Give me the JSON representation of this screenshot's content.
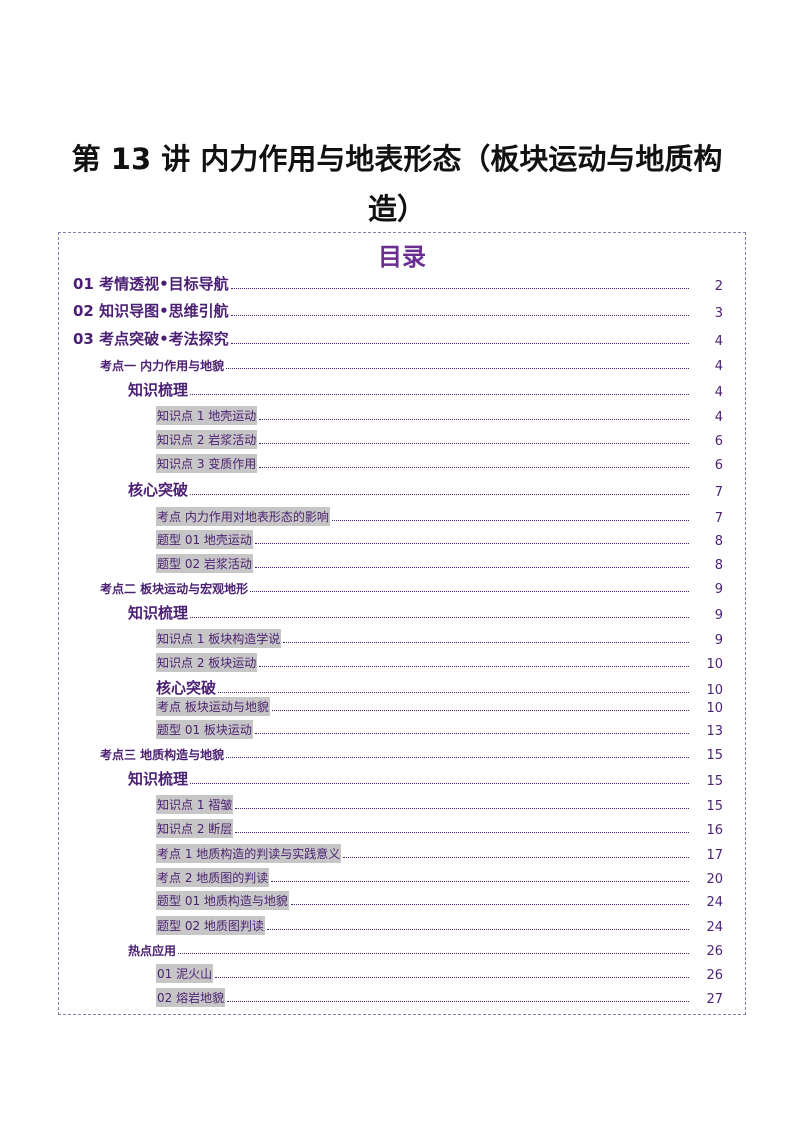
{
  "title": {
    "line1": "第 13 讲  内力作用与地表形态（板块运动与地质构",
    "line2": "造）"
  },
  "toc": {
    "heading": "目录",
    "entries": [
      {
        "label": "01  考情透视•目标导航",
        "page": "2"
      },
      {
        "label": "02  知识导图•思维引航",
        "page": "3"
      },
      {
        "label": "03  考点突破•考法探究",
        "page": "4"
      },
      {
        "label": "考点一    内力作用与地貌",
        "page": "4"
      },
      {
        "label": "知识梳理",
        "page": "4"
      },
      {
        "label": "知识点 1   地壳运动",
        "page": "4"
      },
      {
        "label": "知识点 2     岩浆活动",
        "page": "6"
      },
      {
        "label": "知识点 3     变质作用",
        "page": "6"
      },
      {
        "label": "核心突破",
        "page": "7"
      },
      {
        "label": "考点  内力作用对地表形态的影响",
        "page": "7"
      },
      {
        "label": "题型 01   地壳运动",
        "page": "8"
      },
      {
        "label": "题型 02   岩浆活动",
        "page": "8"
      },
      {
        "label": "考点二    板块运动与宏观地形",
        "page": "9"
      },
      {
        "label": "知识梳理",
        "page": "9"
      },
      {
        "label": "知识点 1   板块构造学说",
        "page": "9"
      },
      {
        "label": "知识点 2     板块运动",
        "page": "10"
      },
      {
        "label": "核心突破",
        "page": "10"
      },
      {
        "label": "考点  板块运动与地貌",
        "page": "10"
      },
      {
        "label": "题型 01   板块运动",
        "page": "13"
      },
      {
        "label": "考点三    地质构造与地貌",
        "page": "15"
      },
      {
        "label": "知识梳理",
        "page": "15"
      },
      {
        "label": "知识点 1   褶皱",
        "page": "15"
      },
      {
        "label": "知识点 2     断层",
        "page": "16"
      },
      {
        "label": "考点 1     地质构造的判读与实践意义",
        "page": "17"
      },
      {
        "label": "考点 2     地质图的判读",
        "page": "20"
      },
      {
        "label": "题型 01     地质构造与地貌",
        "page": "24"
      },
      {
        "label": "题型 02     地质图判读",
        "page": "24"
      },
      {
        "label": "热点应用",
        "page": "26"
      },
      {
        "label": "01   泥火山",
        "page": "26"
      },
      {
        "label": "02   熔岩地貌",
        "page": "27"
      }
    ]
  }
}
